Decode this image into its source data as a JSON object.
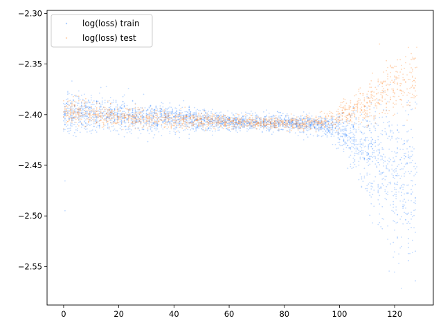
{
  "chart_data": {
    "type": "scatter",
    "title": "",
    "xlabel": "",
    "ylabel": "",
    "xlim": [
      -6,
      134
    ],
    "ylim": [
      -2.588,
      -2.297
    ],
    "grid": false,
    "legend_position": "top-left",
    "x_ticks": [
      0,
      20,
      40,
      60,
      80,
      100,
      120
    ],
    "x_tick_labels": [
      "0",
      "20",
      "40",
      "60",
      "80",
      "100",
      "120"
    ],
    "y_ticks": [
      -2.3,
      -2.35,
      -2.4,
      -2.45,
      -2.5,
      -2.55
    ],
    "y_tick_labels": [
      "−2.30",
      "−2.35",
      "−2.40",
      "−2.45",
      "−2.50",
      "−2.55"
    ],
    "series": [
      {
        "name": "log(loss) train",
        "color": "#1f7bff",
        "x_range": [
          0,
          128
        ],
        "envelope": {
          "x": [
            0,
            10,
            20,
            30,
            40,
            50,
            60,
            70,
            80,
            90,
            95,
            100,
            105,
            110,
            115,
            120,
            125,
            128
          ],
          "center": [
            -2.398,
            -2.399,
            -2.401,
            -2.403,
            -2.404,
            -2.406,
            -2.407,
            -2.408,
            -2.408,
            -2.409,
            -2.411,
            -2.415,
            -2.425,
            -2.435,
            -2.448,
            -2.46,
            -2.472,
            -2.478
          ],
          "spread": [
            0.01,
            0.009,
            0.008,
            0.007,
            0.006,
            0.005,
            0.004,
            0.004,
            0.004,
            0.004,
            0.005,
            0.008,
            0.015,
            0.022,
            0.03,
            0.036,
            0.04,
            0.042
          ]
        }
      },
      {
        "name": "log(loss) test",
        "color": "#ff8c33",
        "x_range": [
          0,
          128
        ],
        "envelope": {
          "x": [
            0,
            10,
            20,
            30,
            40,
            50,
            60,
            70,
            80,
            90,
            95,
            100,
            105,
            110,
            115,
            120,
            125,
            128
          ],
          "center": [
            -2.398,
            -2.4,
            -2.402,
            -2.403,
            -2.405,
            -2.406,
            -2.407,
            -2.408,
            -2.408,
            -2.408,
            -2.406,
            -2.402,
            -2.395,
            -2.388,
            -2.38,
            -2.372,
            -2.366,
            -2.362
          ],
          "spread": [
            0.007,
            0.006,
            0.005,
            0.005,
            0.004,
            0.004,
            0.003,
            0.003,
            0.003,
            0.003,
            0.004,
            0.006,
            0.008,
            0.01,
            0.012,
            0.013,
            0.014,
            0.015
          ]
        }
      }
    ]
  }
}
